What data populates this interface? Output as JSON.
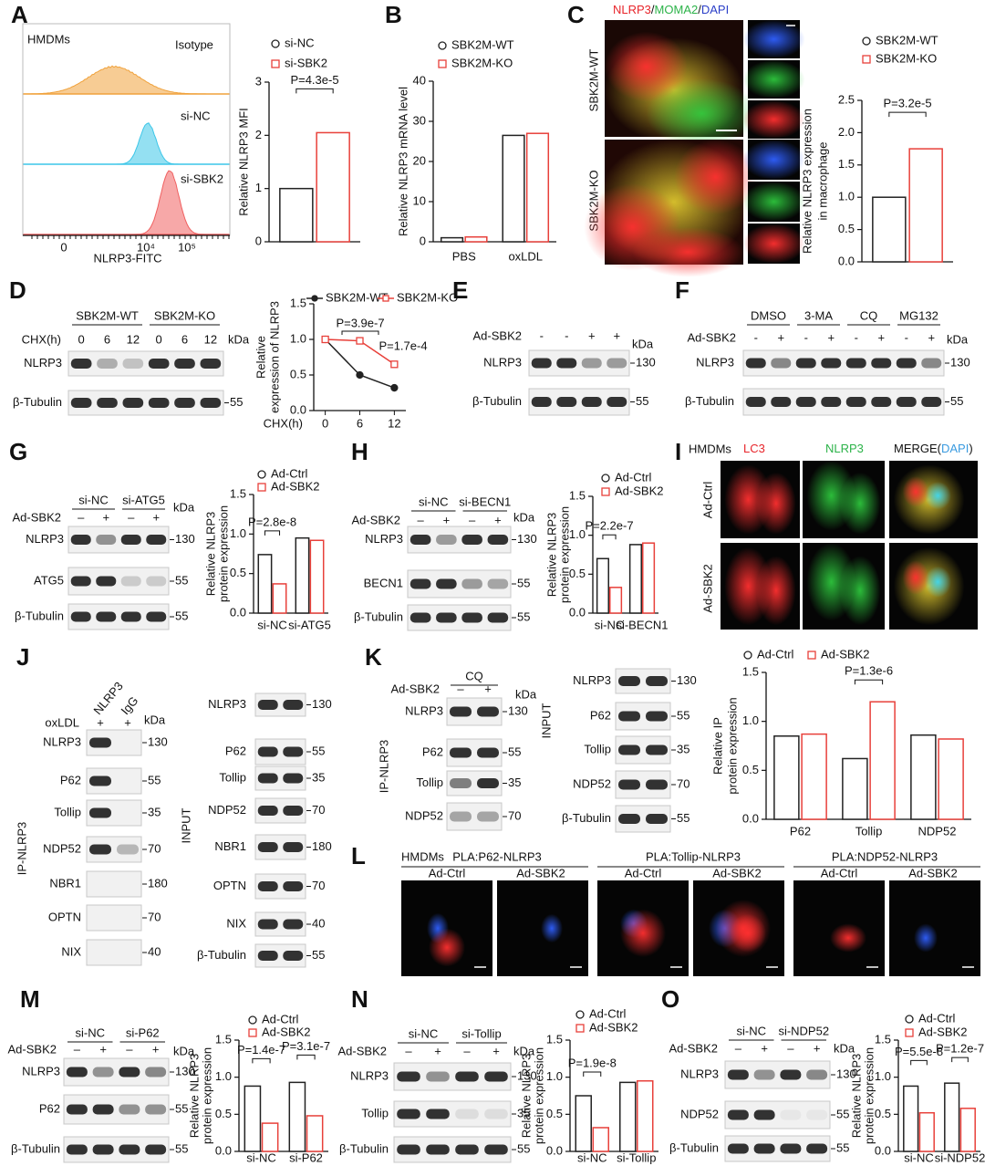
{
  "panels": {
    "A": {
      "label": "A",
      "title": "HMDMs",
      "tracks": [
        "Isotype",
        "si-NC",
        "si-SBK2"
      ],
      "x_label": "NLRP3-FITC",
      "x_ticks": [
        "0",
        "10⁴",
        "10⁵"
      ]
    },
    "B": {
      "label": "B"
    },
    "C": {
      "label": "C",
      "title_parts": [
        {
          "text": "NLRP3",
          "color": "#e8252b"
        },
        {
          "text": "/",
          "color": "#111111"
        },
        {
          "text": "MOMA2",
          "color": "#2db34a"
        },
        {
          "text": "/",
          "color": "#111111"
        },
        {
          "text": "DAPI",
          "color": "#2b3fc8"
        }
      ],
      "rows": [
        "SBK2M-WT",
        "SBK2M-KO"
      ]
    },
    "D": {
      "label": "D",
      "groups": [
        "SBK2M-WT",
        "SBK2M-KO"
      ],
      "treatment": "CHX(h)",
      "signs": [
        "0",
        "6",
        "12",
        "0",
        "6",
        "12"
      ],
      "unit": "kDa",
      "rows": [
        {
          "name": "NLRP3"
        },
        {
          "name": "β-Tubulin",
          "kda": 55
        }
      ]
    },
    "E": {
      "label": "E",
      "treatment": "Ad-SBK2",
      "signs": [
        "-",
        "-",
        "+",
        "+"
      ],
      "unit": "kDa",
      "rows": [
        {
          "name": "NLRP3",
          "kda": 130
        },
        {
          "name": "β-Tubulin",
          "kda": 55
        }
      ]
    },
    "F": {
      "label": "F",
      "groups": [
        "DMSO",
        "3-MA",
        "CQ",
        "MG132"
      ],
      "treatment": "Ad-SBK2",
      "signs": [
        "-",
        "+",
        "-",
        "+",
        "-",
        "+",
        "-",
        "+"
      ],
      "unit": "kDa",
      "rows": [
        {
          "name": "NLRP3",
          "kda": 130
        },
        {
          "name": "β-Tubulin",
          "kda": 55
        }
      ]
    },
    "G": {
      "label": "G",
      "groups": [
        "si-NC",
        "si-ATG5"
      ],
      "treatment": "Ad-SBK2",
      "signs": [
        "–",
        "+",
        "–",
        "+"
      ],
      "unit": "kDa",
      "rows": [
        {
          "name": "NLRP3",
          "kda": 130
        },
        {
          "name": "ATG5",
          "kda": 55
        },
        {
          "name": "β-Tubulin",
          "kda": 55
        }
      ]
    },
    "H": {
      "label": "H",
      "groups": [
        "si-NC",
        "si-BECN1"
      ],
      "treatment": "Ad-SBK2",
      "signs": [
        "–",
        "+",
        "–",
        "+"
      ],
      "unit": "kDa",
      "rows": [
        {
          "name": "NLRP3",
          "kda": 130
        },
        {
          "name": "BECN1",
          "kda": 55
        },
        {
          "name": "β-Tubulin",
          "kda": 55
        }
      ]
    },
    "I": {
      "label": "I",
      "title": "HMDMs",
      "columns": [
        [
          {
            "text": "LC3",
            "color": "#e8252b"
          }
        ],
        [
          {
            "text": "NLRP3",
            "color": "#2db34a"
          }
        ],
        [
          {
            "text": "MERGE(",
            "color": "#111111"
          },
          {
            "text": "DAPI",
            "color": "#3a9be0"
          },
          {
            "text": ")",
            "color": "#111111"
          }
        ]
      ],
      "rows": [
        "Ad-Ctrl",
        "Ad-SBK2"
      ]
    },
    "J": {
      "label": "J",
      "groups": [
        "NLRP3",
        "IgG"
      ],
      "treatment": "oxLDL",
      "signs": [
        "+",
        "+"
      ],
      "unit": "kDa",
      "ip": {
        "side_label": "IP-NLRP3",
        "rows": [
          {
            "name": "NLRP3",
            "kda": 130
          },
          {
            "name": "P62",
            "kda": 55
          },
          {
            "name": "Tollip",
            "kda": 35
          },
          {
            "name": "NDP52",
            "kda": 70
          },
          {
            "name": "NBR1",
            "kda": 180
          },
          {
            "name": "OPTN",
            "kda": 70
          },
          {
            "name": "NIX",
            "kda": 40
          }
        ]
      },
      "input": {
        "side_label": "INPUT",
        "rows": [
          {
            "name": "NLRP3",
            "kda": 130
          },
          {
            "name": "P62",
            "kda": 55
          },
          {
            "name": "Tollip",
            "kda": 35
          },
          {
            "name": "NDP52",
            "kda": 70
          },
          {
            "name": "NBR1",
            "kda": 180
          },
          {
            "name": "OPTN",
            "kda": 70
          },
          {
            "name": "NIX",
            "kda": 40
          },
          {
            "name": "β-Tubulin",
            "kda": 55
          }
        ]
      }
    },
    "K": {
      "label": "K",
      "groups": [
        "CQ"
      ],
      "treatment": "Ad-SBK2",
      "signs": [
        "–",
        "+"
      ],
      "unit": "kDa",
      "ip": {
        "side_label": "IP-NLRP3",
        "rows": [
          {
            "name": "NLRP3",
            "kda": 130
          },
          {
            "name": "P62",
            "kda": 55
          },
          {
            "name": "Tollip",
            "kda": 35
          },
          {
            "name": "NDP52",
            "kda": 70
          }
        ]
      },
      "input": {
        "side_label": "INPUT",
        "rows": [
          {
            "name": "NLRP3",
            "kda": 130
          },
          {
            "name": "P62",
            "kda": 55
          },
          {
            "name": "Tollip",
            "kda": 35
          },
          {
            "name": "NDP52",
            "kda": 70
          },
          {
            "name": "β-Tubulin",
            "kda": 55
          }
        ]
      }
    },
    "L": {
      "label": "L",
      "title": "HMDMs",
      "groups": [
        "PLA:P62-NLRP3",
        "PLA:Tollip-NLRP3",
        "PLA:NDP52-NLRP3"
      ],
      "conditions": [
        "Ad-Ctrl",
        "Ad-SBK2"
      ]
    },
    "M": {
      "label": "M",
      "groups": [
        "si-NC",
        "si-P62"
      ],
      "treatment": "Ad-SBK2",
      "signs": [
        "–",
        "+",
        "–",
        "+"
      ],
      "unit": "kDa",
      "rows": [
        {
          "name": "NLRP3",
          "kda": 130
        },
        {
          "name": "P62",
          "kda": 55
        },
        {
          "name": "β-Tubulin",
          "kda": 55
        }
      ]
    },
    "N": {
      "label": "N",
      "groups": [
        "si-NC",
        "si-Tollip"
      ],
      "treatment": "Ad-SBK2",
      "signs": [
        "–",
        "+",
        "–",
        "+"
      ],
      "unit": "kDa",
      "rows": [
        {
          "name": "NLRP3",
          "kda": 130
        },
        {
          "name": "Tollip",
          "kda": 35
        },
        {
          "name": "β-Tubulin",
          "kda": 55
        }
      ]
    },
    "O": {
      "label": "O",
      "groups": [
        "si-NC",
        "si-NDP52"
      ],
      "treatment": "Ad-SBK2",
      "signs": [
        "–",
        "+",
        "–",
        "+"
      ],
      "unit": "kDa",
      "rows": [
        {
          "name": "NLRP3",
          "kda": 130
        },
        {
          "name": "NDP52",
          "kda": 55
        },
        {
          "name": "β-Tubulin",
          "kda": 55
        }
      ]
    }
  },
  "chart_data": [
    {
      "type": "bar",
      "y_label": [
        "Relative NLRP3 MFI"
      ],
      "categories": [
        null
      ],
      "ylim": [
        0,
        3
      ],
      "yticks": [
        0,
        1,
        2,
        3
      ],
      "series": [
        {
          "name": "si-NC",
          "color": "#222222",
          "marker": "circle",
          "values": [
            1.0
          ]
        },
        {
          "name": "si-SBK2",
          "color": "#e8403a",
          "marker": "square",
          "values": [
            2.05
          ]
        }
      ],
      "annotations": [
        "P=4.3e-5"
      ]
    },
    {
      "type": "bar",
      "y_label": [
        "Relative NLRP3 mRNA level"
      ],
      "categories": [
        "PBS",
        "oxLDL"
      ],
      "ylim": [
        0,
        40
      ],
      "yticks": [
        0,
        10,
        20,
        30,
        40
      ],
      "series": [
        {
          "name": "SBK2M-WT",
          "color": "#222222",
          "marker": "circle",
          "values": [
            1,
            26.5
          ]
        },
        {
          "name": "SBK2M-KO",
          "color": "#e8403a",
          "marker": "square",
          "values": [
            1.2,
            27
          ]
        }
      ],
      "annotations": []
    },
    {
      "type": "bar",
      "y_label": [
        "Relative  NLRP3 expression",
        "in macrophage"
      ],
      "categories": [
        null
      ],
      "ylim": [
        0,
        2.5
      ],
      "yticks": [
        {
          "value": 0,
          "label": "0.0"
        },
        0.5,
        {
          "value": 1,
          "label": "1.0"
        },
        1.5,
        {
          "value": 2,
          "label": "2.0"
        },
        2.5
      ],
      "series": [
        {
          "name": "SBK2M-WT",
          "color": "#222222",
          "marker": "circle",
          "values": [
            1.0
          ]
        },
        {
          "name": "SBK2M-KO",
          "color": "#e8403a",
          "marker": "square",
          "values": [
            1.75
          ]
        }
      ],
      "annotations": [
        "P=3.2e-5"
      ]
    },
    {
      "type": "line",
      "y_label": [
        "Relative",
        "expression of NLRP3"
      ],
      "x_label": "CHX(h)",
      "x": [
        0,
        6,
        12
      ],
      "xlim": [
        -2,
        14
      ],
      "xticks": [
        0,
        6,
        12
      ],
      "ylim": [
        0,
        1.5
      ],
      "yticks": [
        {
          "value": 0,
          "label": "0.0"
        },
        0.5,
        {
          "value": 1,
          "label": "1.0"
        },
        1.5
      ],
      "series": [
        {
          "name": "SBK2M-WT",
          "color": "#222222",
          "marker": "circle",
          "values": [
            1,
            0.5,
            0.32
          ]
        },
        {
          "name": "SBK2M-KO",
          "color": "#e8403a",
          "marker": "square",
          "values": [
            1,
            0.98,
            0.65
          ]
        }
      ],
      "annotations": [
        "P=3.9e-7",
        "P=1.7e-4"
      ]
    },
    {
      "type": "bar",
      "y_label": [
        "Relative NLRP3",
        "protein expression"
      ],
      "categories": [
        "si-NC",
        "si-ATG5"
      ],
      "ylim": [
        0,
        1.5
      ],
      "yticks": [
        {
          "value": 0,
          "label": "0.0"
        },
        0.5,
        {
          "value": 1,
          "label": "1.0"
        },
        1.5
      ],
      "series": [
        {
          "name": "Ad-Ctrl",
          "color": "#222222",
          "marker": "circle",
          "values": [
            0.74,
            0.95
          ]
        },
        {
          "name": "Ad-SBK2",
          "color": "#e8403a",
          "marker": "square",
          "values": [
            0.37,
            0.92
          ]
        }
      ],
      "annotations": [
        "P=2.8e-8"
      ]
    },
    {
      "type": "bar",
      "y_label": [
        "Relative NLRP3",
        "protein expression"
      ],
      "categories": [
        "si-NC",
        "si-BECN1"
      ],
      "ylim": [
        0,
        1.5
      ],
      "yticks": [
        {
          "value": 0,
          "label": "0.0"
        },
        0.5,
        {
          "value": 1,
          "label": "1.0"
        },
        1.5
      ],
      "series": [
        {
          "name": "Ad-Ctrl",
          "color": "#222222",
          "marker": "circle",
          "values": [
            0.7,
            0.88
          ]
        },
        {
          "name": "Ad-SBK2",
          "color": "#e8403a",
          "marker": "square",
          "values": [
            0.33,
            0.9
          ]
        }
      ],
      "annotations": [
        "P=2.2e-7"
      ]
    },
    {
      "type": "bar",
      "y_label": [
        "Relative IP",
        "protein expression"
      ],
      "categories": [
        "P62",
        "Tollip",
        "NDP52"
      ],
      "ylim": [
        0,
        1.5
      ],
      "yticks": [
        {
          "value": 0,
          "label": "0.0"
        },
        0.5,
        {
          "value": 1,
          "label": "1.0"
        },
        1.5
      ],
      "series": [
        {
          "name": "Ad-Ctrl",
          "color": "#222222",
          "marker": "circle",
          "values": [
            0.85,
            0.62,
            0.86
          ]
        },
        {
          "name": "Ad-SBK2",
          "color": "#e8403a",
          "marker": "square",
          "values": [
            0.87,
            1.2,
            0.82
          ]
        }
      ],
      "annotations": [
        "P=1.3e-6"
      ]
    },
    {
      "type": "bar",
      "y_label": [
        "Relative NLRP3",
        "protein expression"
      ],
      "categories": [
        "si-NC",
        "si-P62"
      ],
      "ylim": [
        0,
        1.5
      ],
      "yticks": [
        {
          "value": 0,
          "label": "0.0"
        },
        0.5,
        {
          "value": 1,
          "label": "1.0"
        },
        1.5
      ],
      "series": [
        {
          "name": "Ad-Ctrl",
          "color": "#222222",
          "marker": "circle",
          "values": [
            0.88,
            0.93
          ]
        },
        {
          "name": "Ad-SBK2",
          "color": "#e8403a",
          "marker": "square",
          "values": [
            0.38,
            0.48
          ]
        }
      ],
      "annotations": [
        "P=1.4e-7",
        "P=3.1e-7"
      ]
    },
    {
      "type": "bar",
      "y_label": [
        "Relative NLRP3",
        "protein expression"
      ],
      "categories": [
        "si-NC",
        "si-Tollip"
      ],
      "ylim": [
        0,
        1.5
      ],
      "yticks": [
        {
          "value": 0,
          "label": "0.0"
        },
        0.5,
        {
          "value": 1,
          "label": "1.0"
        },
        1.5
      ],
      "series": [
        {
          "name": "Ad-Ctrl",
          "color": "#222222",
          "marker": "circle",
          "values": [
            0.75,
            0.93
          ]
        },
        {
          "name": "Ad-SBK2",
          "color": "#e8403a",
          "marker": "square",
          "values": [
            0.32,
            0.95
          ]
        }
      ],
      "annotations": [
        "P=1.9e-8"
      ]
    },
    {
      "type": "bar",
      "y_label": [
        "Relative NLRP3",
        "protein expression"
      ],
      "categories": [
        "si-NC",
        "si-NDP52"
      ],
      "ylim": [
        0,
        1.5
      ],
      "yticks": [
        {
          "value": 0,
          "label": "0.0"
        },
        0.5,
        {
          "value": 1,
          "label": "1.0"
        },
        1.5
      ],
      "series": [
        {
          "name": "Ad-Ctrl",
          "color": "#222222",
          "marker": "circle",
          "values": [
            0.88,
            0.92
          ]
        },
        {
          "name": "Ad-SBK2",
          "color": "#e8403a",
          "marker": "square",
          "values": [
            0.52,
            0.58
          ]
        }
      ],
      "annotations": [
        "P=5.5e-8",
        "P=1.2e-7"
      ]
    }
  ]
}
